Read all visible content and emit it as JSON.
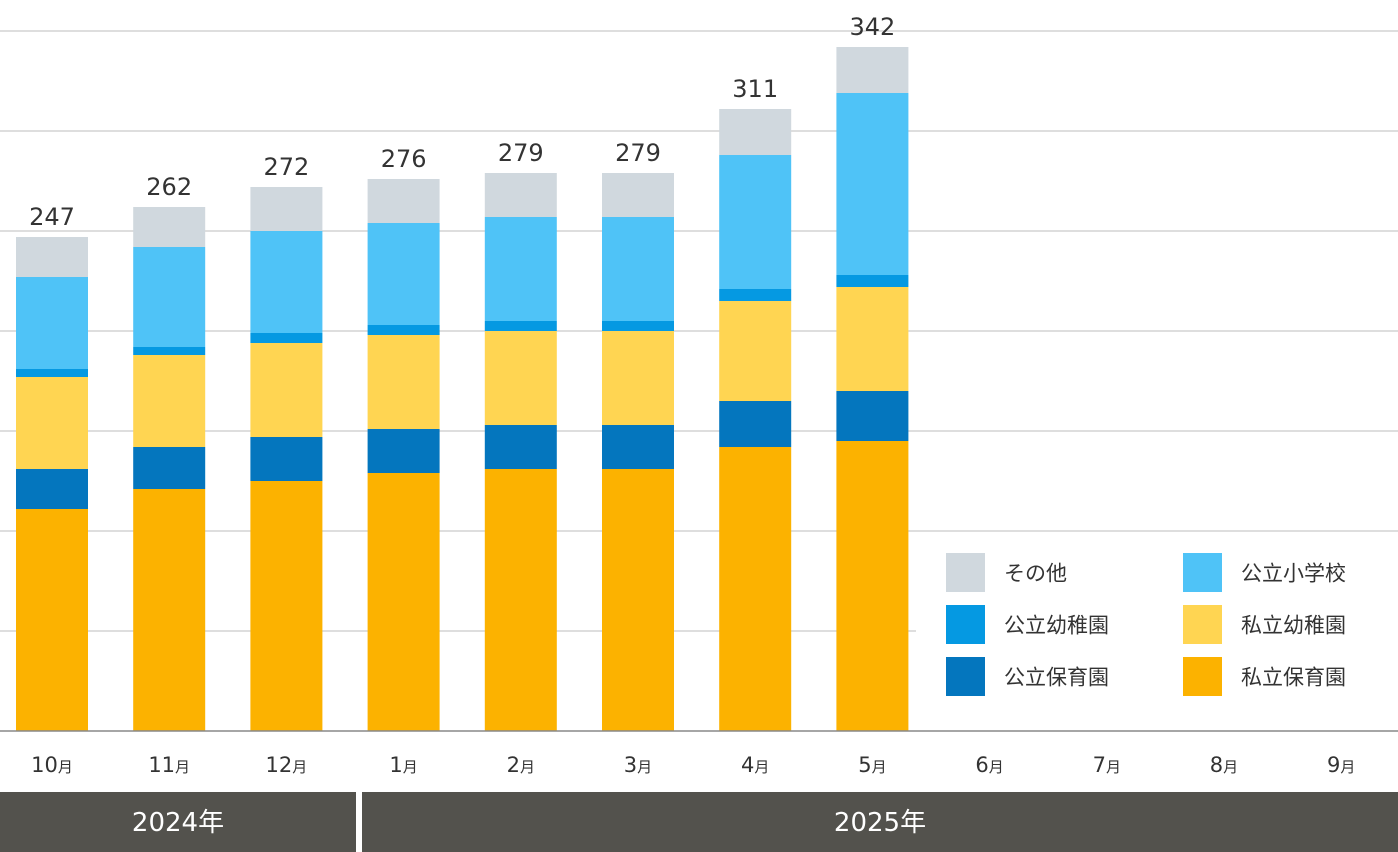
{
  "chart_data": {
    "type": "bar",
    "stacked": true,
    "categories": [
      {
        "num": "10",
        "suffix": "月"
      },
      {
        "num": "11",
        "suffix": "月"
      },
      {
        "num": "12",
        "suffix": "月"
      },
      {
        "num": "1",
        "suffix": "月"
      },
      {
        "num": "2",
        "suffix": "月"
      },
      {
        "num": "3",
        "suffix": "月"
      },
      {
        "num": "4",
        "suffix": "月"
      },
      {
        "num": "5",
        "suffix": "月"
      },
      {
        "num": "6",
        "suffix": "月"
      },
      {
        "num": "7",
        "suffix": "月"
      },
      {
        "num": "8",
        "suffix": "月"
      },
      {
        "num": "9",
        "suffix": "月"
      }
    ],
    "years": [
      {
        "label": "2024年",
        "from_index": 0,
        "to_index": 2
      },
      {
        "label": "2025年",
        "from_index": 3,
        "to_index": 11
      }
    ],
    "ylim": [
      0,
      350
    ],
    "gridlines": [
      50,
      100,
      150,
      200,
      250,
      300,
      350
    ],
    "series": [
      {
        "name": "私立保育園",
        "color": "#FCB200",
        "values": [
          111,
          121,
          125,
          129,
          131,
          131,
          142,
          145,
          null,
          null,
          null,
          null
        ]
      },
      {
        "name": "公立保育園",
        "color": "#0476BE",
        "values": [
          20,
          21,
          22,
          22,
          22,
          22,
          23,
          25,
          null,
          null,
          null,
          null
        ]
      },
      {
        "name": "私立幼稚園",
        "color": "#FFD552",
        "values": [
          46,
          46,
          47,
          47,
          47,
          47,
          50,
          52,
          null,
          null,
          null,
          null
        ]
      },
      {
        "name": "公立幼稚園",
        "color": "#0599E2",
        "values": [
          4,
          4,
          5,
          5,
          5,
          5,
          6,
          6,
          null,
          null,
          null,
          null
        ]
      },
      {
        "name": "公立小学校",
        "color": "#4FC3F7",
        "values": [
          46,
          50,
          51,
          51,
          52,
          52,
          67,
          91,
          null,
          null,
          null,
          null
        ]
      },
      {
        "name": "その他",
        "color": "#D0D8DE",
        "values": [
          20,
          20,
          22,
          22,
          22,
          22,
          23,
          23,
          null,
          null,
          null,
          null
        ]
      }
    ],
    "totals": [
      247,
      262,
      272,
      276,
      279,
      279,
      311,
      342,
      null,
      null,
      null,
      null
    ],
    "legend": {
      "placement": "bottom-right",
      "order": [
        "その他",
        "公立小学校",
        "公立幼稚園",
        "私立幼稚園",
        "公立保育園",
        "私立保育園"
      ]
    },
    "colors": {
      "gridline": "#D4D4D4",
      "baseline": "#888888",
      "year_band": "#53524D",
      "text": "#333333"
    }
  }
}
